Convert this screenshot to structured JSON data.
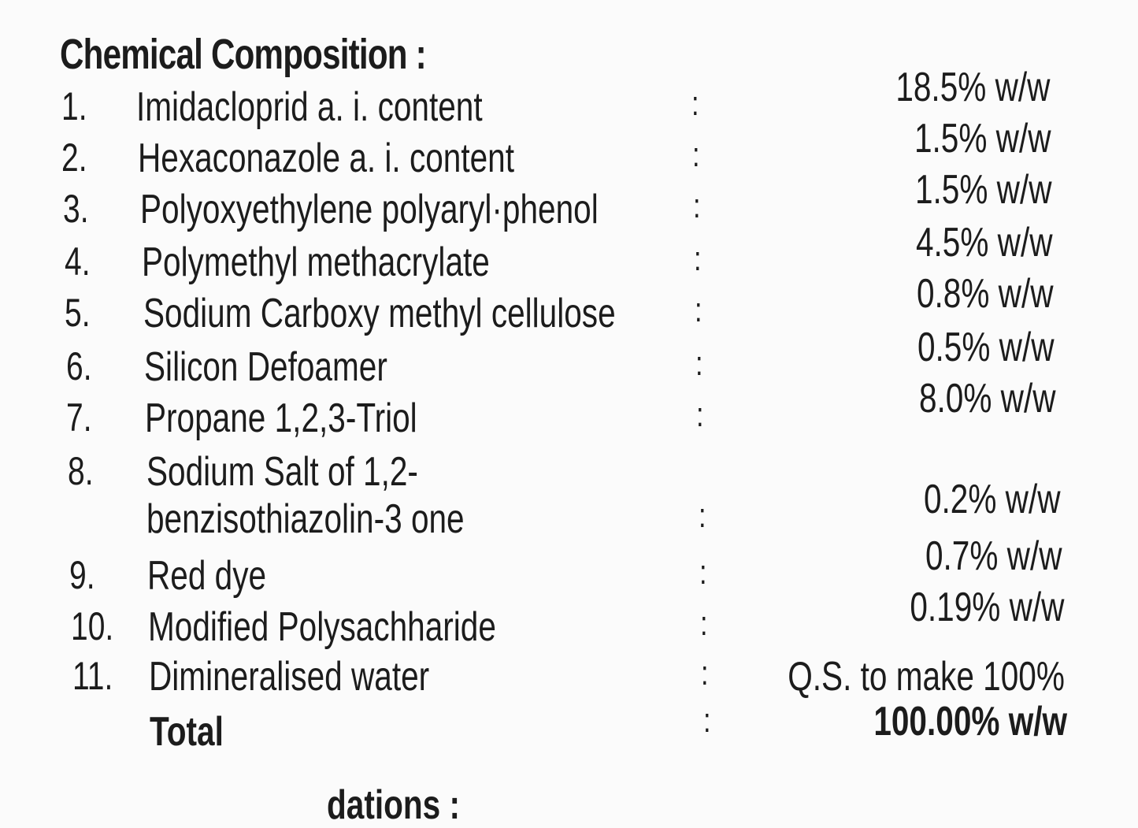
{
  "title": "Chemical Composition :",
  "rows": [
    {
      "num": "1.",
      "name": "Imidacloprid a. i. content",
      "value": "18.5% w/w"
    },
    {
      "num": "2.",
      "name": "Hexaconazole a. i. content",
      "value": "1.5% w/w"
    },
    {
      "num": "3.",
      "name": "Polyoxyethylene polyaryl·phenol",
      "value": "1.5% w/w"
    },
    {
      "num": "4.",
      "name": "Polymethyl methacrylate",
      "value": "4.5% w/w"
    },
    {
      "num": "5.",
      "name": "Sodium Carboxy methyl cellulose",
      "value": "0.8% w/w"
    },
    {
      "num": "6.",
      "name": "Silicon Defoamer",
      "value": "0.5% w/w"
    },
    {
      "num": "7.",
      "name": "Propane 1,2,3-Triol",
      "value": "8.0% w/w"
    },
    {
      "num": "8.",
      "name": "Sodium Salt of 1,2-",
      "name2": "benzisothiazolin-3 one",
      "value": "0.2% w/w"
    },
    {
      "num": "9.",
      "name": "Red dye",
      "value": "0.7% w/w"
    },
    {
      "num": "10.",
      "name": "Modified Polysachharide",
      "value": "0.19% w/w"
    },
    {
      "num": "11.",
      "name": "Dimineralised water",
      "value": "Q.S. to make 100%"
    }
  ],
  "total": {
    "name": "Total",
    "value": "100.00% w/w"
  },
  "separator": ":",
  "next_heading_partial": "dations :"
}
